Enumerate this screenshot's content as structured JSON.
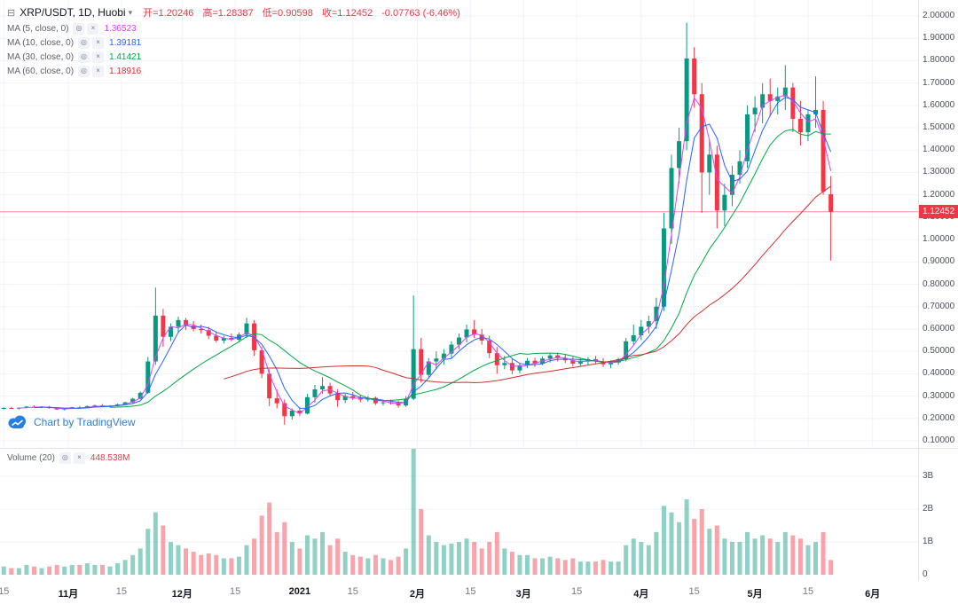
{
  "header": {
    "symbol_title": "XRP/USDT, 1D, Huobi",
    "ohlc": {
      "open": "开=1.20246",
      "high": "高=1.28387",
      "low": "低=0.90598",
      "close": "收=1.12452",
      "change": "-0.07763 (-6.46%)",
      "color": "#f23645"
    }
  },
  "indicators": [
    {
      "label": "MA (5, close, 0)",
      "value": "1.36523",
      "color": "#e040fb"
    },
    {
      "label": "MA (10, close, 0)",
      "value": "1.39181",
      "color": "#2962ff"
    },
    {
      "label": "MA (30, close, 0)",
      "value": "1.41421",
      "color": "#00a843"
    },
    {
      "label": "MA (60, close, 0)",
      "value": "1.18916",
      "color": "#d32f2f"
    }
  ],
  "volume_indicator": {
    "label": "Volume (20)",
    "value": "448.538M",
    "color": "#f23645"
  },
  "attribution": {
    "text": "Chart by TradingView"
  },
  "colors": {
    "up": "#089981",
    "down": "#f23645",
    "vol_up": "rgba(8,153,129,0.45)",
    "vol_down": "rgba(242,54,69,0.45)"
  },
  "price_axis": {
    "labels": [
      "2.00000",
      "1.90000",
      "1.80000",
      "1.70000",
      "1.60000",
      "1.50000",
      "1.40000",
      "1.30000",
      "1.20000",
      "1.10000",
      "1.00000",
      "0.90000",
      "0.80000",
      "0.70000",
      "0.60000",
      "0.50000",
      "0.40000",
      "0.30000",
      "0.20000",
      "0.10000"
    ],
    "current": {
      "label": "1.12452",
      "value": 1.12452
    }
  },
  "volume_axis": {
    "labels": [
      {
        "label": "3B",
        "value": 3
      },
      {
        "label": "2B",
        "value": 2
      },
      {
        "label": "1B",
        "value": 1
      },
      {
        "label": "0",
        "value": 0
      }
    ]
  },
  "time_axis": {
    "ticks": [
      {
        "label": "15",
        "slot": 0,
        "major": false
      },
      {
        "label": "11月",
        "slot": 8.5,
        "major": true
      },
      {
        "label": "15",
        "slot": 15.5,
        "major": false
      },
      {
        "label": "12月",
        "slot": 23.5,
        "major": true
      },
      {
        "label": "15",
        "slot": 30.5,
        "major": false
      },
      {
        "label": "2021",
        "slot": 39,
        "major": true
      },
      {
        "label": "15",
        "slot": 46,
        "major": false
      },
      {
        "label": "2月",
        "slot": 54.5,
        "major": true
      },
      {
        "label": "15",
        "slot": 61.5,
        "major": false
      },
      {
        "label": "3月",
        "slot": 68.5,
        "major": true
      },
      {
        "label": "15",
        "slot": 75.5,
        "major": false
      },
      {
        "label": "4月",
        "slot": 84,
        "major": true
      },
      {
        "label": "15",
        "slot": 91,
        "major": false
      },
      {
        "label": "5月",
        "slot": 99,
        "major": true
      },
      {
        "label": "15",
        "slot": 106,
        "major": false
      },
      {
        "label": "6月",
        "slot": 114.5,
        "major": true
      }
    ]
  },
  "chart_data": {
    "type": "candlestick+volume",
    "symbol": "XRP/USDT",
    "interval": "1D",
    "exchange": "Huobi",
    "price_range": [
      0.1,
      2.0
    ],
    "volume_range_billions": [
      0,
      4
    ],
    "slots_total": 121,
    "last": {
      "open": 1.20246,
      "high": 1.28387,
      "low": 0.90598,
      "close": 1.12452,
      "change": -0.07763,
      "change_pct": -6.46
    },
    "ma_lines": [
      {
        "period": 5,
        "render_window": 3,
        "color": "#e040fb",
        "last_value": 1.36523
      },
      {
        "period": 10,
        "render_window": 5,
        "color": "#2962ff",
        "last_value": 1.39181
      },
      {
        "period": 30,
        "render_window": 15,
        "color": "#00a843",
        "last_value": 1.41421
      },
      {
        "period": 60,
        "render_window": 30,
        "color": "#d32f2f",
        "last_value": 1.18916
      }
    ],
    "candles": [
      [
        0.245,
        0.25,
        0.24,
        0.247,
        0.25
      ],
      [
        0.247,
        0.252,
        0.243,
        0.244,
        0.2
      ],
      [
        0.244,
        0.249,
        0.24,
        0.248,
        0.2
      ],
      [
        0.248,
        0.256,
        0.245,
        0.253,
        0.3
      ],
      [
        0.253,
        0.258,
        0.248,
        0.25,
        0.25
      ],
      [
        0.25,
        0.255,
        0.246,
        0.252,
        0.2
      ],
      [
        0.252,
        0.256,
        0.244,
        0.246,
        0.25
      ],
      [
        0.246,
        0.25,
        0.238,
        0.24,
        0.3
      ],
      [
        0.24,
        0.246,
        0.236,
        0.244,
        0.25
      ],
      [
        0.244,
        0.252,
        0.242,
        0.25,
        0.3
      ],
      [
        0.25,
        0.256,
        0.244,
        0.246,
        0.3
      ],
      [
        0.246,
        0.258,
        0.245,
        0.255,
        0.35
      ],
      [
        0.255,
        0.262,
        0.252,
        0.258,
        0.3
      ],
      [
        0.258,
        0.264,
        0.25,
        0.253,
        0.3
      ],
      [
        0.253,
        0.26,
        0.249,
        0.257,
        0.25
      ],
      [
        0.257,
        0.266,
        0.254,
        0.263,
        0.35
      ],
      [
        0.263,
        0.275,
        0.26,
        0.272,
        0.45
      ],
      [
        0.272,
        0.292,
        0.268,
        0.288,
        0.6
      ],
      [
        0.288,
        0.32,
        0.285,
        0.315,
        0.8
      ],
      [
        0.315,
        0.475,
        0.31,
        0.455,
        1.4
      ],
      [
        0.455,
        0.785,
        0.44,
        0.66,
        1.9
      ],
      [
        0.66,
        0.69,
        0.52,
        0.565,
        1.5
      ],
      [
        0.565,
        0.625,
        0.545,
        0.61,
        1.0
      ],
      [
        0.61,
        0.655,
        0.585,
        0.64,
        0.9
      ],
      [
        0.64,
        0.65,
        0.595,
        0.615,
        0.8
      ],
      [
        0.615,
        0.635,
        0.59,
        0.6,
        0.7
      ],
      [
        0.6,
        0.62,
        0.58,
        0.595,
        0.6
      ],
      [
        0.595,
        0.61,
        0.555,
        0.57,
        0.65
      ],
      [
        0.57,
        0.59,
        0.54,
        0.548,
        0.6
      ],
      [
        0.548,
        0.57,
        0.535,
        0.56,
        0.5
      ],
      [
        0.56,
        0.58,
        0.545,
        0.552,
        0.5
      ],
      [
        0.552,
        0.585,
        0.54,
        0.575,
        0.55
      ],
      [
        0.575,
        0.65,
        0.56,
        0.625,
        0.9
      ],
      [
        0.625,
        0.64,
        0.48,
        0.505,
        1.1
      ],
      [
        0.505,
        0.52,
        0.38,
        0.4,
        1.8
      ],
      [
        0.4,
        0.42,
        0.255,
        0.29,
        2.2
      ],
      [
        0.29,
        0.33,
        0.245,
        0.268,
        1.3
      ],
      [
        0.268,
        0.285,
        0.172,
        0.21,
        1.6
      ],
      [
        0.21,
        0.245,
        0.195,
        0.235,
        1.0
      ],
      [
        0.235,
        0.25,
        0.21,
        0.222,
        0.8
      ],
      [
        0.222,
        0.31,
        0.218,
        0.295,
        1.2
      ],
      [
        0.295,
        0.35,
        0.27,
        0.33,
        1.1
      ],
      [
        0.33,
        0.385,
        0.31,
        0.345,
        1.3
      ],
      [
        0.345,
        0.36,
        0.3,
        0.312,
        0.9
      ],
      [
        0.312,
        0.33,
        0.252,
        0.282,
        1.1
      ],
      [
        0.282,
        0.31,
        0.27,
        0.3,
        0.7
      ],
      [
        0.3,
        0.318,
        0.282,
        0.29,
        0.6
      ],
      [
        0.29,
        0.305,
        0.272,
        0.284,
        0.55
      ],
      [
        0.284,
        0.3,
        0.275,
        0.292,
        0.5
      ],
      [
        0.292,
        0.298,
        0.26,
        0.268,
        0.6
      ],
      [
        0.268,
        0.282,
        0.258,
        0.272,
        0.5
      ],
      [
        0.272,
        0.285,
        0.262,
        0.27,
        0.45
      ],
      [
        0.27,
        0.28,
        0.248,
        0.258,
        0.55
      ],
      [
        0.258,
        0.3,
        0.252,
        0.288,
        0.8
      ],
      [
        0.288,
        0.75,
        0.282,
        0.51,
        3.85
      ],
      [
        0.51,
        0.56,
        0.36,
        0.395,
        2.0
      ],
      [
        0.395,
        0.47,
        0.38,
        0.455,
        1.2
      ],
      [
        0.455,
        0.5,
        0.42,
        0.468,
        1.0
      ],
      [
        0.468,
        0.51,
        0.44,
        0.49,
        0.9
      ],
      [
        0.49,
        0.545,
        0.47,
        0.53,
        0.95
      ],
      [
        0.53,
        0.58,
        0.51,
        0.562,
        1.0
      ],
      [
        0.562,
        0.62,
        0.54,
        0.598,
        1.1
      ],
      [
        0.598,
        0.64,
        0.56,
        0.575,
        1.0
      ],
      [
        0.575,
        0.6,
        0.53,
        0.548,
        0.8
      ],
      [
        0.548,
        0.57,
        0.47,
        0.492,
        1.0
      ],
      [
        0.492,
        0.52,
        0.4,
        0.438,
        1.3
      ],
      [
        0.438,
        0.48,
        0.42,
        0.448,
        0.8
      ],
      [
        0.448,
        0.465,
        0.398,
        0.415,
        0.7
      ],
      [
        0.415,
        0.445,
        0.402,
        0.438,
        0.6
      ],
      [
        0.438,
        0.47,
        0.425,
        0.458,
        0.6
      ],
      [
        0.458,
        0.472,
        0.43,
        0.445,
        0.5
      ],
      [
        0.445,
        0.478,
        0.438,
        0.468,
        0.5
      ],
      [
        0.468,
        0.49,
        0.45,
        0.482,
        0.55
      ],
      [
        0.482,
        0.495,
        0.455,
        0.47,
        0.5
      ],
      [
        0.47,
        0.485,
        0.448,
        0.46,
        0.45
      ],
      [
        0.46,
        0.475,
        0.432,
        0.445,
        0.5
      ],
      [
        0.445,
        0.468,
        0.435,
        0.458,
        0.4
      ],
      [
        0.458,
        0.475,
        0.44,
        0.465,
        0.4
      ],
      [
        0.465,
        0.48,
        0.445,
        0.455,
        0.4
      ],
      [
        0.455,
        0.47,
        0.43,
        0.442,
        0.45
      ],
      [
        0.442,
        0.46,
        0.425,
        0.45,
        0.4
      ],
      [
        0.45,
        0.472,
        0.44,
        0.465,
        0.4
      ],
      [
        0.465,
        0.56,
        0.455,
        0.545,
        0.9
      ],
      [
        0.545,
        0.62,
        0.53,
        0.572,
        1.1
      ],
      [
        0.572,
        0.64,
        0.55,
        0.61,
        1.0
      ],
      [
        0.61,
        0.66,
        0.58,
        0.635,
        0.9
      ],
      [
        0.635,
        0.74,
        0.6,
        0.7,
        1.3
      ],
      [
        0.7,
        1.12,
        0.68,
        1.05,
        2.1
      ],
      [
        1.05,
        1.38,
        0.98,
        1.32,
        1.9
      ],
      [
        1.32,
        1.5,
        1.25,
        1.44,
        1.6
      ],
      [
        1.44,
        1.97,
        1.4,
        1.81,
        2.3
      ],
      [
        1.81,
        1.86,
        1.59,
        1.65,
        1.7
      ],
      [
        1.65,
        1.7,
        1.12,
        1.3,
        2.0
      ],
      [
        1.3,
        1.45,
        1.2,
        1.38,
        1.4
      ],
      [
        1.38,
        1.42,
        1.05,
        1.13,
        1.5
      ],
      [
        1.13,
        1.25,
        1.06,
        1.2,
        1.1
      ],
      [
        1.2,
        1.33,
        1.15,
        1.29,
        1.0
      ],
      [
        1.29,
        1.4,
        1.25,
        1.35,
        1.0
      ],
      [
        1.35,
        1.6,
        1.32,
        1.56,
        1.3
      ],
      [
        1.56,
        1.64,
        1.48,
        1.59,
        1.1
      ],
      [
        1.59,
        1.7,
        1.52,
        1.65,
        1.2
      ],
      [
        1.65,
        1.72,
        1.55,
        1.62,
        1.1
      ],
      [
        1.62,
        1.68,
        1.56,
        1.64,
        1.0
      ],
      [
        1.64,
        1.78,
        1.58,
        1.68,
        1.3
      ],
      [
        1.68,
        1.7,
        1.48,
        1.54,
        1.2
      ],
      [
        1.54,
        1.62,
        1.42,
        1.48,
        1.1
      ],
      [
        1.48,
        1.58,
        1.44,
        1.56,
        0.9
      ],
      [
        1.56,
        1.73,
        1.5,
        1.58,
        1.0
      ],
      [
        1.58,
        1.62,
        1.2,
        1.215,
        1.3
      ],
      [
        1.20246,
        1.28387,
        0.90598,
        1.12452,
        0.4485
      ]
    ]
  }
}
